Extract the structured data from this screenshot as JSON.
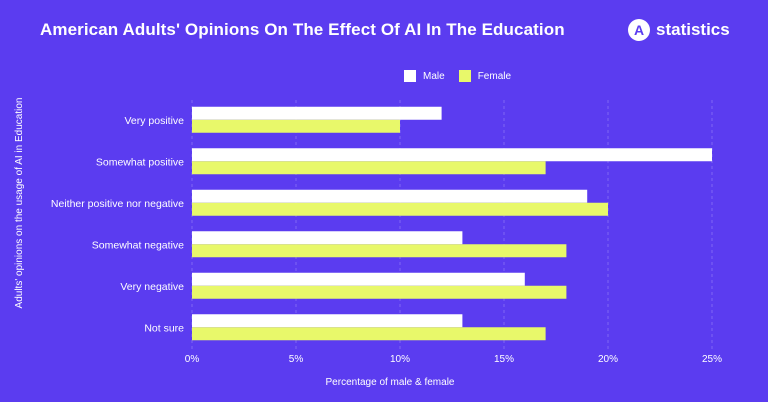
{
  "header": {
    "title": "American Adults' Opinions On The Effect Of AI In The Education",
    "brand_logo_letter": "A",
    "brand_name": "statistics"
  },
  "colors": {
    "background": "#5b3cf0",
    "male": "#ffffff",
    "female": "#e8f86a"
  },
  "chart_data": {
    "type": "bar",
    "orientation": "horizontal",
    "categories": [
      "Very positive",
      "Somewhat positive",
      "Neither positive nor negative",
      "Somewhat negative",
      "Very negative",
      "Not sure"
    ],
    "series": [
      {
        "name": "Male",
        "values": [
          12,
          25,
          19,
          13,
          16,
          13
        ]
      },
      {
        "name": "Female",
        "values": [
          10,
          17,
          20,
          18,
          18,
          17
        ]
      }
    ],
    "xlabel": "Percentage of male & female",
    "ylabel": "Adults' opinions on the usage of AI in Education",
    "xlim": [
      0,
      25
    ],
    "xticks": [
      "0%",
      "5%",
      "10%",
      "15%",
      "20%",
      "25%"
    ],
    "grid": true,
    "legend_position": "top"
  }
}
